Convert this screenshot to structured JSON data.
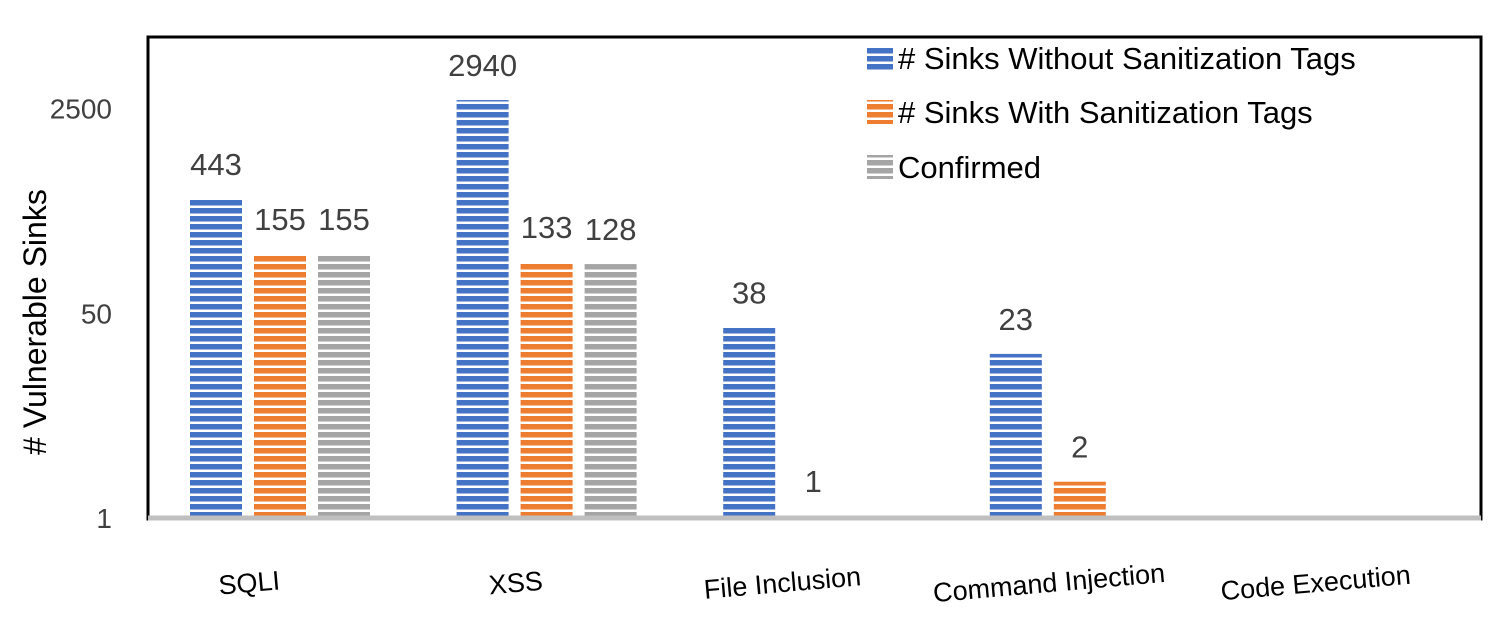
{
  "chart_data": {
    "type": "bar",
    "title": "",
    "xlabel": "",
    "ylabel": "# Vulnerable Sinks",
    "yscale": "log",
    "ylim": [
      1,
      10000
    ],
    "yticks": [
      {
        "value": 1,
        "label": "1"
      },
      {
        "value": 50,
        "label": "50"
      },
      {
        "value": 2500,
        "label": "2500"
      }
    ],
    "categories": [
      "SQLI",
      "XSS",
      "File Inclusion",
      "Command Injection",
      "Code Execution"
    ],
    "series": [
      {
        "name": "# Sinks Without Sanitization Tags",
        "color": "#4472C4",
        "values": [
          443,
          2940,
          38,
          23,
          null
        ],
        "labels": [
          "443",
          "2940",
          "38",
          "23",
          ""
        ]
      },
      {
        "name": "# Sinks With Sanitization Tags",
        "color": "#ED7D31",
        "values": [
          155,
          133,
          1,
          2,
          null
        ],
        "labels": [
          "155",
          "133",
          "1",
          "2",
          ""
        ]
      },
      {
        "name": "Confirmed",
        "color": "#A5A5A5",
        "values": [
          155,
          128,
          null,
          null,
          null
        ],
        "labels": [
          "155",
          "128",
          "",
          "",
          ""
        ]
      }
    ],
    "legend_position": "top-right"
  }
}
